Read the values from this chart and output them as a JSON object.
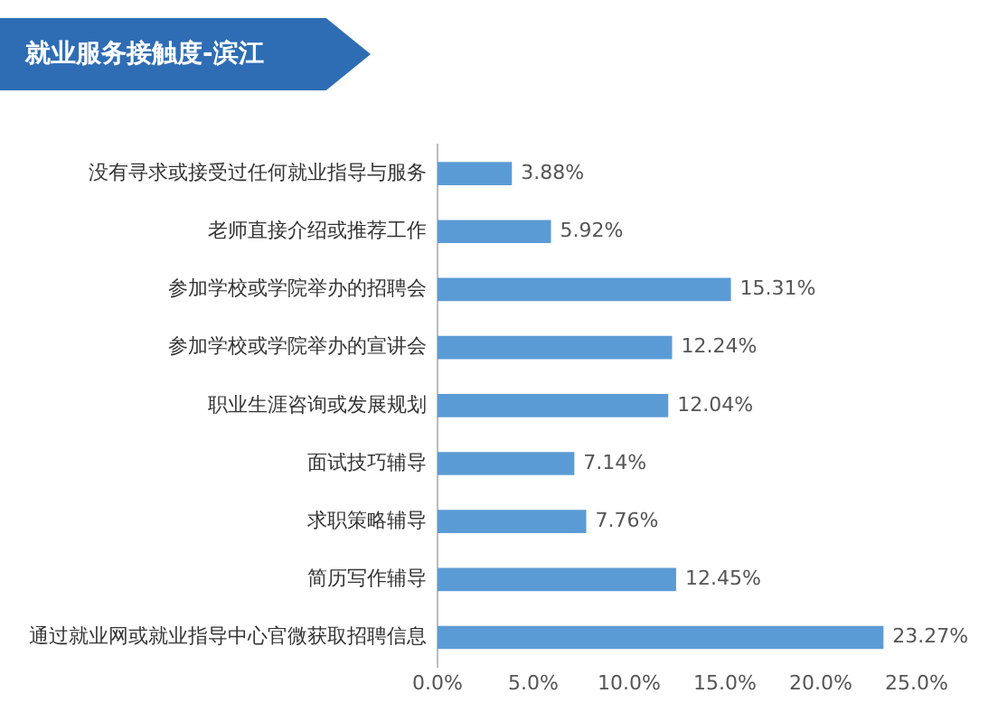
{
  "chart_data": {
    "type": "bar",
    "orientation": "horizontal",
    "title": "就业服务接触度-滨江",
    "categories": [
      "没有寻求或接受过任何就业指导与服务",
      "老师直接介绍或推荐工作",
      "参加学校或学院举办的招聘会",
      "参加学校或学院举办的宣讲会",
      "职业生涯咨询或发展规划",
      "面试技巧辅导",
      "求职策略辅导",
      "简历写作辅导",
      "通过就业网或就业指导中心官微获取招聘信息"
    ],
    "values": [
      3.88,
      5.92,
      15.31,
      12.24,
      12.04,
      7.14,
      7.76,
      12.45,
      23.27
    ],
    "value_labels": [
      "3.88%",
      "5.92%",
      "15.31%",
      "12.24%",
      "12.04%",
      "7.14%",
      "7.76%",
      "12.45%",
      "23.27%"
    ],
    "color": "#5b9bd5",
    "xlim": [
      0,
      25
    ],
    "xticks": [
      {
        "value": 0,
        "label": "0.0%"
      },
      {
        "value": 5,
        "label": "5.0%"
      },
      {
        "value": 10,
        "label": "10.0%"
      },
      {
        "value": 15,
        "label": "15.0%"
      },
      {
        "value": 20,
        "label": "20.0%"
      },
      {
        "value": 25,
        "label": "25.0%"
      }
    ],
    "grid": false,
    "legend": false
  }
}
